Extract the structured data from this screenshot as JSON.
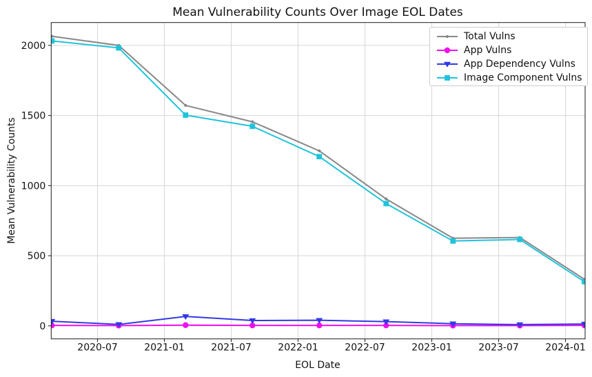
{
  "figure": {
    "title": "Mean Vulnerability Counts Over Image EOL Dates"
  },
  "chart_data": {
    "type": "line",
    "title": "Mean Vulnerability Counts Over Image EOL Dates",
    "xlabel": "EOL Date",
    "ylabel": "Mean Vulnerability Counts",
    "grid": true,
    "legend_position": "upper right",
    "x_dates": [
      "2020-03",
      "2020-09",
      "2021-03",
      "2021-09",
      "2022-03",
      "2022-09",
      "2023-03",
      "2023-09",
      "2024-02"
    ],
    "x_months": [
      1.9,
      7.9,
      13.9,
      19.9,
      25.9,
      31.9,
      37.9,
      43.9,
      49.7
    ],
    "xlim_months": [
      1.84,
      49.76
    ],
    "ylim": [
      -93,
      2163
    ],
    "x_ticks": {
      "months": [
        6,
        12,
        18,
        24,
        30,
        36,
        42,
        48
      ],
      "labels": [
        "2020-07",
        "2021-01",
        "2021-07",
        "2022-01",
        "2022-07",
        "2023-01",
        "2023-07",
        "2024-01"
      ]
    },
    "y_ticks": [
      0,
      500,
      1000,
      1500,
      2000
    ],
    "series": [
      {
        "name": "Total Vulns",
        "color": "#878787",
        "marker": "circle-small",
        "values": [
          2065,
          2000,
          1572,
          1455,
          1248,
          905,
          625,
          630,
          332
        ]
      },
      {
        "name": "App Vulns",
        "color": "#ee0fee",
        "marker": "circle",
        "values": [
          3,
          2,
          5,
          3,
          3,
          3,
          2,
          2,
          3
        ]
      },
      {
        "name": "App Dependency Vulns",
        "color": "#3338e3",
        "marker": "triangle-down",
        "values": [
          33,
          10,
          67,
          38,
          40,
          30,
          15,
          9,
          13
        ]
      },
      {
        "name": "Image Component Vulns",
        "color": "#1fc3dc",
        "marker": "square",
        "values": [
          2032,
          1982,
          1503,
          1423,
          1207,
          872,
          605,
          616,
          315
        ]
      }
    ]
  }
}
